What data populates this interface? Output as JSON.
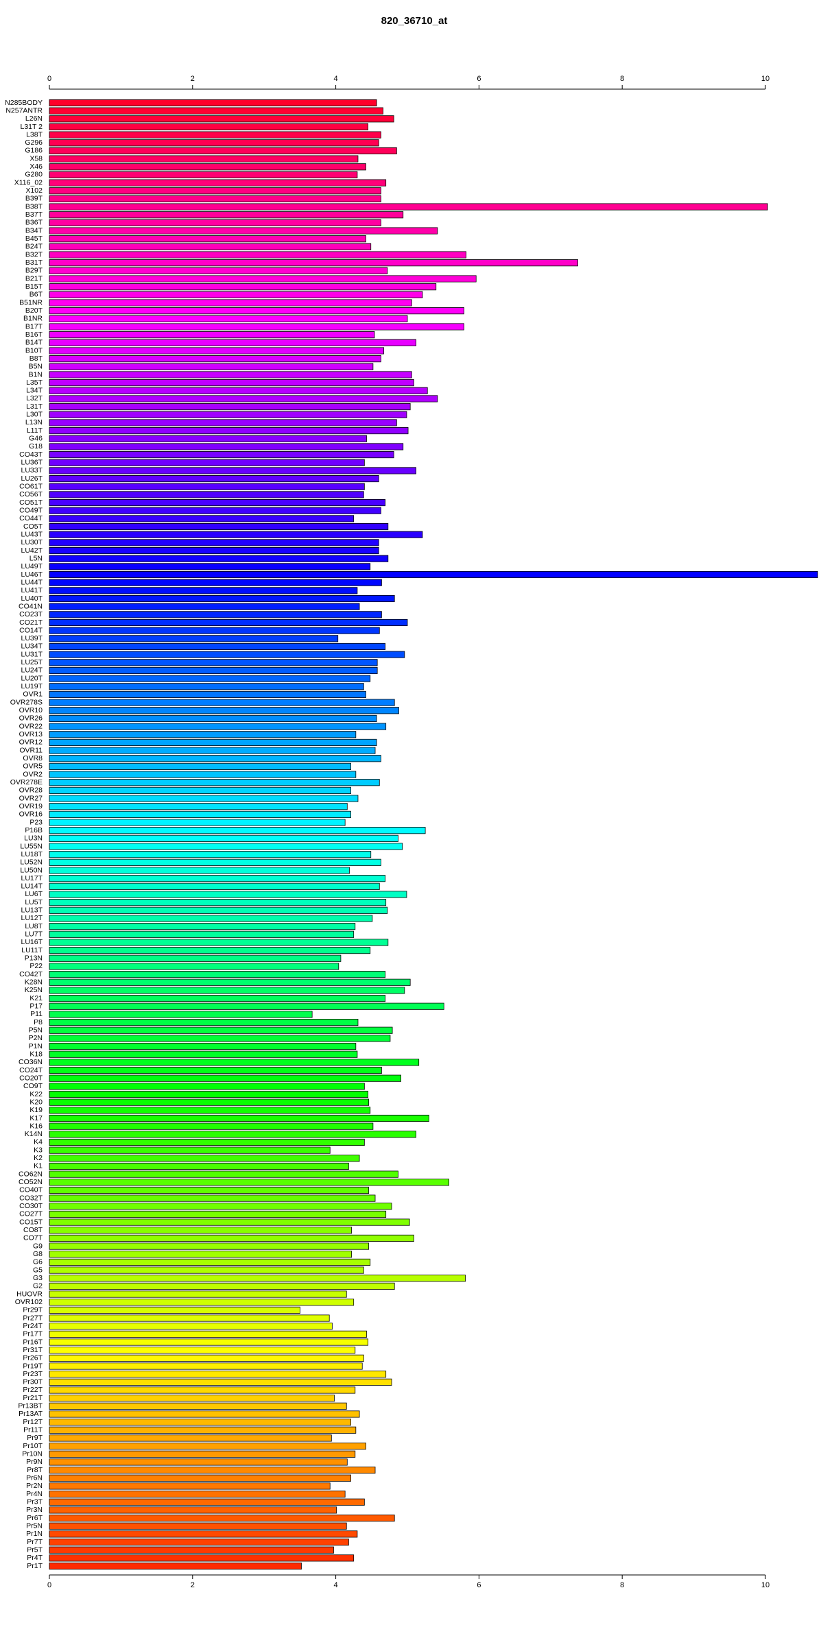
{
  "chart_data": {
    "type": "bar",
    "orientation": "horizontal",
    "title": "820_36710_at",
    "categories": [
      "N285BODY",
      "N257ANTR",
      "L26N",
      "L31T 2",
      "L38T",
      "G296",
      "G186",
      "X58",
      "X46",
      "G280",
      "X116_02",
      "X102",
      "B39T",
      "B38T",
      "B37T",
      "B36T",
      "B34T",
      "B45T",
      "B24T",
      "B32T",
      "B31T",
      "B29T",
      "B21T",
      "B15T",
      "B6T",
      "B51NR",
      "B20T",
      "B1NR",
      "B17T",
      "B16T",
      "B14T",
      "B10T",
      "B8T",
      "B5N",
      "B1N",
      "L35T",
      "L34T",
      "L32T",
      "L31T",
      "L30T",
      "L13N",
      "L11T",
      "G46",
      "G18",
      "CO43T",
      "LU36T",
      "LU33T",
      "LU26T",
      "CO61T",
      "CO56T",
      "CO51T",
      "CO49T",
      "CO44T",
      "CO5T",
      "LU43T",
      "LU30T",
      "LU42T",
      "L5N",
      "LU49T",
      "LU46T",
      "LU44T",
      "LU41T",
      "LU40T",
      "CO41N",
      "CO23T",
      "CO21T",
      "CO14T",
      "LU39T",
      "LU34T",
      "LU31T",
      "LU25T",
      "LU24T",
      "LU20T",
      "LU19T",
      "OVR1",
      "OVR278S",
      "OVR10",
      "OVR26",
      "OVR22",
      "OVR13",
      "OVR12",
      "OVR11",
      "OVR8",
      "OVR5",
      "OVR2",
      "OVR278E",
      "OVR28",
      "OVR27",
      "OVR19",
      "OVR16",
      "P23",
      "P16B",
      "LU3N",
      "LU55N",
      "LU18T",
      "LU52N",
      "LU50N",
      "LU17T",
      "LU14T",
      "LU6T",
      "LU5T",
      "LU13T",
      "LU12T",
      "LU8T",
      "LU7T",
      "LU16T",
      "LU11T",
      "P13N",
      "P22",
      "CO42T",
      "K28N",
      "K25N",
      "K21",
      "P17",
      "P11",
      "P8",
      "P5N",
      "P2N",
      "P1N",
      "K18",
      "CO36N",
      "CO24T",
      "CO20T",
      "CO9T",
      "K22",
      "K20",
      "K19",
      "K17",
      "K16",
      "K14N",
      "K4",
      "K3",
      "K2",
      "K1",
      "CO62N",
      "CO52N",
      "CO40T",
      "CO32T",
      "CO30T",
      "CO27T",
      "CO15T",
      "CO8T",
      "CO7T",
      "G9",
      "G8",
      "G6",
      "G5",
      "G3",
      "G2",
      "HUOVR",
      "OVR102",
      "Pr29T",
      "Pr27T",
      "Pr24T",
      "Pr17T",
      "Pr16T",
      "Pr31T",
      "Pr26T",
      "Pr19T",
      "Pr23T",
      "Pr30T",
      "Pr22T",
      "Pr21T",
      "Pr13BT",
      "Pr13AT",
      "Pr12T",
      "Pr11T",
      "Pr9T",
      "Pr10T",
      "Pr10N",
      "Pr9N",
      "Pr8T",
      "Pr6N",
      "Pr2N",
      "Pr4N",
      "Pr3T",
      "Pr3N",
      "Pr6T",
      "Pr5N",
      "Pr1N",
      "Pr7T",
      "Pr5T",
      "Pr4T",
      "Pr1T"
    ],
    "values": [
      4.57,
      4.66,
      4.81,
      4.45,
      4.63,
      4.6,
      4.85,
      4.31,
      4.42,
      4.3,
      4.7,
      4.63,
      4.63,
      10.03,
      4.94,
      4.63,
      5.42,
      4.42,
      4.49,
      5.82,
      7.38,
      4.72,
      5.96,
      5.4,
      5.21,
      5.06,
      5.79,
      5.0,
      5.79,
      4.54,
      5.12,
      4.67,
      4.63,
      4.52,
      5.06,
      5.09,
      5.28,
      5.42,
      5.04,
      4.99,
      4.85,
      5.01,
      4.43,
      4.94,
      4.81,
      4.4,
      5.12,
      4.6,
      4.4,
      4.39,
      4.69,
      4.63,
      4.25,
      4.73,
      5.21,
      4.6,
      4.6,
      4.73,
      4.48,
      10.73,
      4.64,
      4.3,
      4.82,
      4.33,
      4.64,
      5.0,
      4.61,
      4.03,
      4.69,
      4.96,
      4.58,
      4.58,
      4.48,
      4.39,
      4.42,
      4.82,
      4.88,
      4.57,
      4.7,
      4.28,
      4.57,
      4.55,
      4.63,
      4.21,
      4.28,
      4.61,
      4.21,
      4.31,
      4.16,
      4.21,
      4.13,
      5.25,
      4.87,
      4.93,
      4.49,
      4.63,
      4.19,
      4.69,
      4.61,
      4.99,
      4.7,
      4.72,
      4.51,
      4.27,
      4.25,
      4.73,
      4.48,
      4.07,
      4.04,
      4.69,
      5.04,
      4.96,
      4.69,
      5.51,
      3.67,
      4.31,
      4.79,
      4.76,
      4.28,
      4.3,
      5.16,
      4.64,
      4.91,
      4.4,
      4.45,
      4.46,
      4.48,
      5.3,
      4.52,
      5.12,
      4.4,
      3.92,
      4.33,
      4.18,
      4.87,
      5.58,
      4.46,
      4.55,
      4.78,
      4.7,
      5.03,
      4.22,
      5.09,
      4.46,
      4.22,
      4.48,
      4.39,
      5.81,
      4.82,
      4.15,
      4.25,
      3.5,
      3.91,
      3.95,
      4.43,
      4.45,
      4.27,
      4.39,
      4.37,
      4.7,
      4.78,
      4.27,
      3.98,
      4.15,
      4.33,
      4.21,
      4.28,
      3.94,
      4.42,
      4.27,
      4.16,
      4.55,
      4.21,
      3.92,
      4.13,
      4.4,
      4.01,
      4.82,
      4.15,
      4.3,
      4.18,
      3.97,
      4.25,
      3.52
    ],
    "xlim": [
      0,
      10
    ],
    "xticks": [
      0,
      2,
      4,
      6,
      8,
      10
    ],
    "palette": "rainbow",
    "bar_edge_color": "#000000"
  }
}
